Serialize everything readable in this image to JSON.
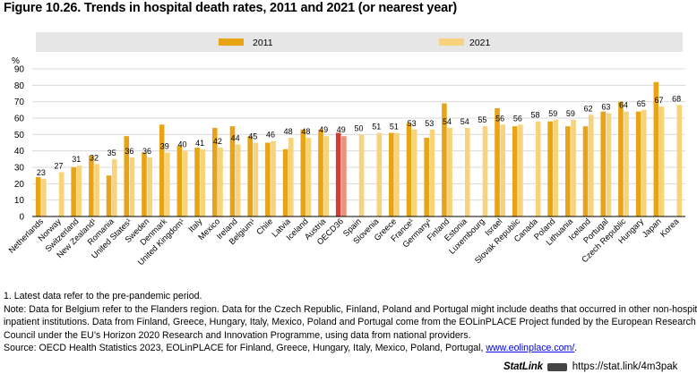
{
  "title": "Figure 10.26. Trends in hospital death rates, 2011 and 2021 (or nearest year)",
  "notes": [
    "1. Latest data refer to the pre-pandemic period.",
    "Note: Data for Belgium refer to the Flanders region. Data for the Czech Republic, Finland, Poland and Portugal might include deaths that occurred in other non-hospital",
    "inpatient institutions. Data from Finland, Greece, Hungary, Italy, Mexico, Poland and Portugal come from the EOLinPLACE Project funded by the European Research",
    "Council under the EU’s Horizon 2020 Research and Innovation Programme, using data from national providers."
  ],
  "source_prefix": "Source: OECD Health Statistics 2023, EOLinPLACE for Finland, Greece, Hungary, Italy, Mexico, Poland, Portugal, ",
  "source_link": "www.eolinplace.com/",
  "source_suffix": ".",
  "statlink": {
    "logo": "StatLink",
    "url": "https://stat.link/4m3pak"
  },
  "colors": {
    "s2011": "#e8a317",
    "s2021": "#f7d47c",
    "oecd2011": "#d63b34",
    "oecd2021": "#ee9178",
    "legend_band": "#e6e6e6",
    "grid": "#d9d9d9"
  },
  "chart_data": {
    "type": "bar",
    "ylabel": "%",
    "ylim": [
      0,
      90
    ],
    "yticks": [
      0,
      10,
      20,
      30,
      40,
      50,
      60,
      70,
      80,
      90
    ],
    "legend_position": "top",
    "highlight": "OECD36",
    "categories": [
      "Netherlands",
      "Norway",
      "Switzerland",
      "New Zealand¹",
      "Romania",
      "United States¹",
      "Sweden",
      "Denmark",
      "United Kingdom¹",
      "Italy",
      "Mexico",
      "Ireland",
      "Belgium¹",
      "Chile",
      "Latvia",
      "Iceland",
      "Austria",
      "OECD36",
      "Spain",
      "Slovenia",
      "Greece",
      "France¹",
      "Germany¹",
      "Finland",
      "Estonia",
      "Luxembourg",
      "Israel",
      "Slovak Republic",
      "Canada",
      "Poland",
      "Lithuania",
      "Iceland",
      "Portugal",
      "Czech Republic",
      "Hungary",
      "Japan",
      "Korea"
    ],
    "series": [
      {
        "name": "2011",
        "values": [
          24,
          null,
          30,
          37,
          25,
          49,
          39,
          56,
          43,
          42,
          54,
          55,
          49,
          45,
          41,
          53,
          53,
          51,
          null,
          null,
          51,
          57,
          48,
          69,
          null,
          null,
          66,
          55,
          null,
          58,
          55,
          55,
          64,
          70,
          64,
          82,
          null
        ]
      },
      {
        "name": "2021",
        "values": [
          23,
          27,
          31,
          32,
          35,
          36,
          36,
          39,
          40,
          41,
          42,
          44,
          45,
          46,
          48,
          48,
          49,
          49,
          50,
          51,
          51,
          53,
          53,
          54,
          54,
          55,
          56,
          56,
          58,
          59,
          59,
          62,
          63,
          64,
          65,
          67,
          68
        ]
      }
    ],
    "data_labels": [
      23,
      27,
      31,
      32,
      35,
      36,
      36,
      39,
      40,
      41,
      42,
      44,
      45,
      46,
      48,
      48,
      49,
      49,
      50,
      51,
      51,
      53,
      53,
      54,
      54,
      55,
      56,
      56,
      58,
      59,
      59,
      62,
      63,
      64,
      65,
      67,
      68
    ]
  }
}
